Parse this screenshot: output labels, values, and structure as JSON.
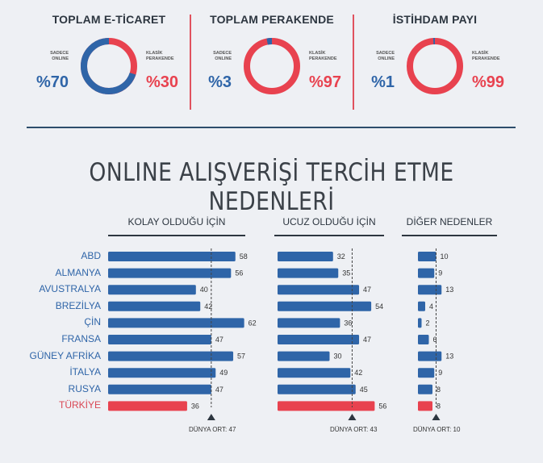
{
  "donuts": [
    {
      "title": "TOPLAM E-TİCARET",
      "left_label": [
        "SADECE",
        "ONLINE"
      ],
      "left_value": "%70",
      "right_label": [
        "KLASİK",
        "PERAKENDE"
      ],
      "right_value": "%30",
      "online": 70
    },
    {
      "title": "TOPLAM PERAKENDE",
      "left_label": [
        "SADECE",
        "ONLINE"
      ],
      "left_value": "%3",
      "right_label": [
        "KLASİK",
        "PERAKENDE"
      ],
      "right_value": "%97",
      "online": 3
    },
    {
      "title": "İSTİHDAM PAYI",
      "left_label": [
        "SADECE",
        "ONLINE"
      ],
      "left_value": "%1",
      "right_label": [
        "KLASİK",
        "PERAKENDE"
      ],
      "right_value": "%99",
      "online": 1
    }
  ],
  "colors": {
    "blue": "#2f65a8",
    "red": "#e8424f",
    "dark": "#2d3640"
  },
  "title": "ONLINE ALIŞVERİŞİ TERCİH ETME NEDENLERİ",
  "chart_data": {
    "type": "bar",
    "categories": [
      "ABD",
      "ALMANYA",
      "AVUSTRALYA",
      "BREZİLYA",
      "ÇİN",
      "FRANSA",
      "GÜNEY AFRİKA",
      "İTALYA",
      "RUSYA",
      "TÜRKİYE"
    ],
    "highlight": "TÜRKİYE",
    "series": [
      {
        "name": "KOLAY OLDUĞU İÇİN",
        "values": [
          58,
          56,
          40,
          42,
          62,
          47,
          57,
          49,
          47,
          36
        ],
        "average": 47,
        "average_label": "DÜNYA ORT: 47"
      },
      {
        "name": "UCUZ OLDUĞU İÇİN",
        "values": [
          32,
          35,
          47,
          54,
          36,
          47,
          30,
          42,
          45,
          56
        ],
        "average": 43,
        "average_label": "DÜNYA ORT: 43"
      },
      {
        "name": "DİĞER NEDENLER",
        "values": [
          10,
          9,
          13,
          4,
          2,
          6,
          13,
          9,
          8,
          8
        ],
        "average": 10,
        "average_label": "DÜNYA ORT: 10"
      }
    ]
  }
}
